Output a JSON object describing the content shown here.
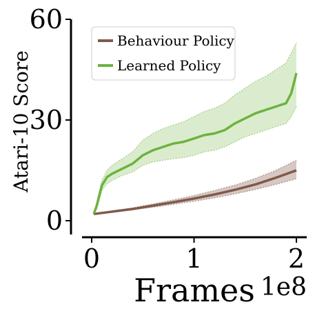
{
  "chart_data": {
    "type": "line",
    "title": "",
    "xlabel": "Frames",
    "ylabel": "Atari-10 Score",
    "x_offset_label": "1e8",
    "xlim": [
      0,
      2.08
    ],
    "ylim": [
      0,
      60
    ],
    "xticks": [
      0,
      1,
      2
    ],
    "yticks": [
      0,
      30,
      60
    ],
    "grid": false,
    "legend_position": "top-left",
    "series": [
      {
        "name": "Behaviour Policy",
        "color": "#7f5a4a",
        "band_color": "#c9b6b0",
        "x": [
          0.02,
          0.2,
          0.4,
          0.6,
          0.8,
          1.0,
          1.2,
          1.4,
          1.6,
          1.8,
          2.0
        ],
        "values": [
          2.0,
          2.7,
          3.5,
          4.5,
          5.5,
          6.6,
          7.8,
          9.2,
          10.8,
          12.8,
          15.0
        ],
        "lower": [
          2.0,
          2.5,
          3.2,
          4.0,
          4.9,
          5.8,
          6.8,
          8.0,
          9.3,
          10.8,
          12.5
        ],
        "upper": [
          2.0,
          2.9,
          3.8,
          5.0,
          6.2,
          7.5,
          9.0,
          10.6,
          12.6,
          15.0,
          18.0
        ]
      },
      {
        "name": "Learned Policy",
        "color": "#6cb33f",
        "band_color": "#cfe6bd",
        "x": [
          0.02,
          0.05,
          0.1,
          0.15,
          0.2,
          0.3,
          0.4,
          0.5,
          0.6,
          0.7,
          0.8,
          0.9,
          1.0,
          1.1,
          1.2,
          1.3,
          1.4,
          1.5,
          1.6,
          1.7,
          1.8,
          1.9,
          1.95,
          2.0
        ],
        "values": [
          2.0,
          4.5,
          10.5,
          13.0,
          14.0,
          15.5,
          17.0,
          19.5,
          21.0,
          22.0,
          23.0,
          23.5,
          24.5,
          25.5,
          26.0,
          27.0,
          29.0,
          30.5,
          32.0,
          33.0,
          34.0,
          35.0,
          38.0,
          44.0
        ],
        "lower": [
          2.0,
          3.5,
          9.0,
          11.0,
          12.0,
          13.5,
          14.5,
          16.5,
          17.5,
          18.0,
          18.5,
          18.8,
          19.5,
          20.5,
          21.0,
          22.0,
          23.5,
          25.0,
          26.0,
          27.0,
          28.0,
          29.0,
          31.0,
          34.0
        ],
        "upper": [
          2.0,
          5.5,
          12.0,
          15.0,
          16.5,
          18.5,
          20.5,
          24.0,
          26.0,
          27.5,
          28.5,
          29.5,
          31.0,
          32.5,
          33.5,
          35.0,
          37.5,
          39.5,
          41.5,
          43.0,
          45.0,
          47.0,
          50.0,
          53.0
        ]
      }
    ]
  }
}
